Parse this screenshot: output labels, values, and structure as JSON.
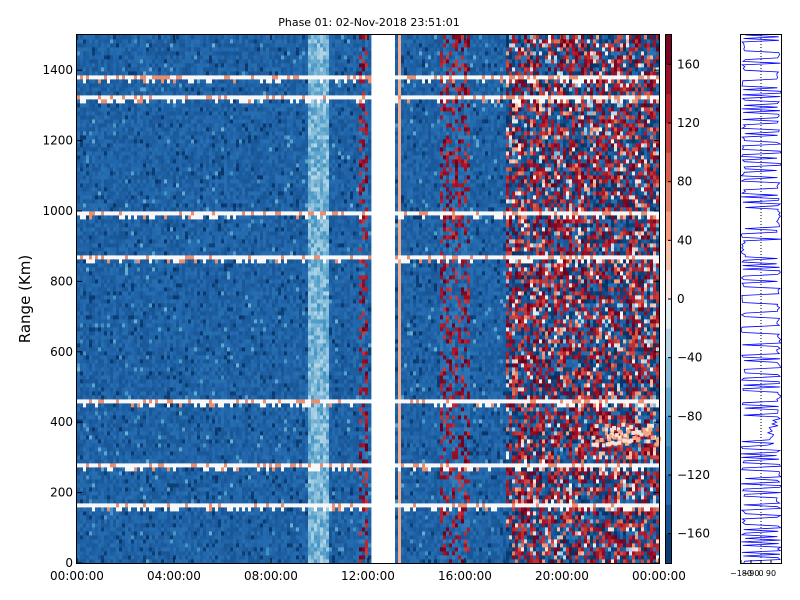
{
  "chart_data": {
    "type": "heatmap",
    "title": "Phase 01: 02-Nov-2018 23:51:01",
    "ylabel": "Range (Km)",
    "xlabel": "",
    "x_ticks": [
      "00:00:00",
      "04:00:00",
      "08:00:00",
      "12:00:00",
      "16:00:00",
      "20:00:00",
      "00:00:00"
    ],
    "x_range_hours": [
      0,
      24
    ],
    "y_ticks": [
      0,
      200,
      400,
      600,
      800,
      1000,
      1200,
      1400
    ],
    "ylim": [
      0,
      1500
    ],
    "colorbar": {
      "colormap": "RdBu_r",
      "range": [
        -180,
        180
      ],
      "ticks": [
        -160,
        -120,
        -80,
        -40,
        0,
        40,
        80,
        120,
        160
      ],
      "colors": [
        "#053061",
        "#2166ac",
        "#4393c3",
        "#92c5de",
        "#f7f7f7",
        "#f4a582",
        "#d6604d",
        "#b2182b",
        "#67001f"
      ]
    },
    "data_gaps_hours": [
      [
        12.1,
        13.1
      ]
    ],
    "regions": [
      {
        "hours": [
          0,
          9.5
        ],
        "phase": "about -140 (blue)"
      },
      {
        "hours": [
          9.5,
          10.4
        ],
        "phase": "about -70 to -40 (light blue)"
      },
      {
        "hours": [
          10.4,
          12.0
        ],
        "phase": "about -140 with red streaks"
      },
      {
        "hours": [
          13.2,
          17.7
        ],
        "phase": "about -140 with scattered red near 15-16 h"
      },
      {
        "hours": [
          17.7,
          24
        ],
        "phase": "noisy, mixed -180 to 180"
      }
    ],
    "white_range_gates_km": [
      1370,
      1315,
      985,
      865,
      455,
      270,
      160
    ],
    "side_profile": {
      "type": "line",
      "color": "#0000ff",
      "x_ticks": [
        "-180",
        "-90",
        "0",
        "90"
      ],
      "xlim": [
        -180,
        180
      ],
      "ylim": [
        0,
        1500
      ]
    }
  }
}
